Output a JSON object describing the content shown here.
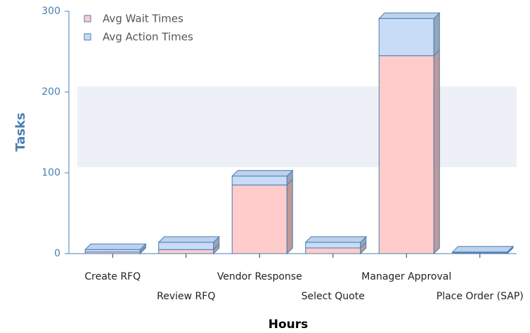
{
  "chart_data": {
    "type": "bar3d_stacked",
    "y_label": "Tasks",
    "x_label": "Hours",
    "categories": [
      "Create RFQ",
      "Review RFQ",
      "Vendor Response",
      "Select Quote",
      "Manager Approval",
      "Place Order (SAP)"
    ],
    "series": [
      {
        "name": "Avg Wait Times",
        "color": "#ffcccc",
        "values": [
          2,
          5,
          85,
          7,
          245,
          1
        ]
      },
      {
        "name": "Avg Action Times",
        "color": "#c8dcf8",
        "values": [
          3,
          9,
          11,
          7,
          46,
          1
        ]
      }
    ],
    "ylim": [
      0,
      300
    ],
    "yticks": [
      0,
      100,
      200,
      300
    ],
    "band": [
      107,
      207
    ],
    "legend": "top-left"
  }
}
